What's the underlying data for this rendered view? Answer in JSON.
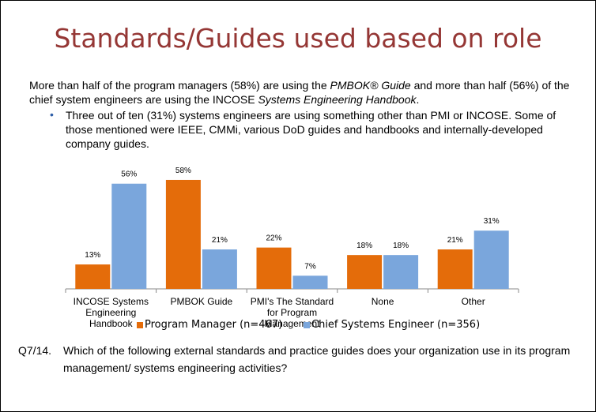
{
  "chart_data": {
    "type": "bar",
    "title": "Standards/Guides used based on role",
    "categories": [
      "INCOSE Systems Engineering Handbook",
      "PMBOK Guide",
      "PMI's The Standard for Program Management",
      "None",
      "Other"
    ],
    "series": [
      {
        "name": "Program Manager (n=467)",
        "color": "#e46c0a",
        "values": [
          13,
          58,
          22,
          18,
          21
        ],
        "value_labels": [
          "13%",
          "58%",
          "22%",
          "18%",
          "21%"
        ]
      },
      {
        "name": "Chief Systems Engineer (n=356)",
        "color": "#7aa6dc",
        "values": [
          56,
          21,
          7,
          18,
          31
        ],
        "value_labels": [
          "56%",
          "21%",
          "7%",
          "18%",
          "31%"
        ]
      }
    ]
  },
  "intro": [
    "More than half of the program managers (58%) are using the ",
    "PMBOK® Guide",
    " and more than half (56%) of the chief system engineers are using the INCOSE ",
    "Systems Engineering Handbook",
    "."
  ],
  "bullet": "Three out of ten (31%) systems engineers are using something other than PMI or INCOSE. Some of those mentioned were IEEE, CMMi, various DoD guides and handbooks and internally-developed company guides.",
  "question": {
    "number": "Q7/14.",
    "text": "Which of the following external standards and practice guides does your organization use in its program management/ systems engineering activities?"
  }
}
